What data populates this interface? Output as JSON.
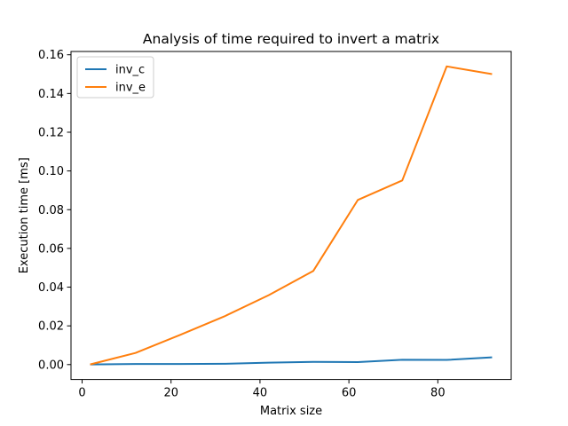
{
  "chart_data": {
    "type": "line",
    "title": "Analysis of time required to invert a matrix",
    "xlabel": "Matrix size",
    "ylabel": "Execution time [ms]",
    "xlim": [
      -2.5,
      96.5
    ],
    "ylim": [
      -0.0077,
      0.1617
    ],
    "xticks": [
      0,
      20,
      40,
      60,
      80
    ],
    "xtick_labels": [
      "0",
      "20",
      "40",
      "60",
      "80"
    ],
    "yticks": [
      0.0,
      0.02,
      0.04,
      0.06,
      0.08,
      0.1,
      0.12,
      0.14,
      0.16
    ],
    "ytick_labels": [
      "0.00",
      "0.02",
      "0.04",
      "0.06",
      "0.08",
      "0.10",
      "0.12",
      "0.14",
      "0.16"
    ],
    "grid": false,
    "legend_position": "top-left",
    "x": [
      2,
      12,
      22,
      32,
      42,
      52,
      62,
      72,
      82,
      92
    ],
    "series": [
      {
        "name": "inv_c",
        "color": "#1f77b4",
        "values": [
          0.0001,
          0.0003,
          0.0003,
          0.0004,
          0.001,
          0.0014,
          0.0013,
          0.0025,
          0.0024,
          0.0037
        ]
      },
      {
        "name": "inv_e",
        "color": "#ff7f0e",
        "values": [
          0.0002,
          0.006,
          0.0153,
          0.0249,
          0.0359,
          0.0484,
          0.085,
          0.0951,
          0.154,
          0.1501
        ]
      }
    ]
  }
}
